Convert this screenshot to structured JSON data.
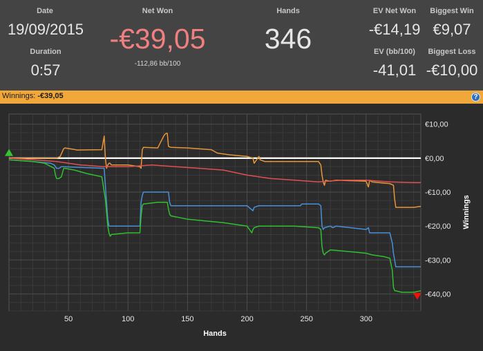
{
  "stats": {
    "date": {
      "label": "Date",
      "value": "19/09/2015"
    },
    "duration": {
      "label": "Duration",
      "value": "0:57"
    },
    "net_won": {
      "label": "Net Won",
      "value": "-€39,05",
      "sub": "-112,86 bb/100"
    },
    "hands": {
      "label": "Hands",
      "value": "346"
    },
    "ev_net_won": {
      "label": "EV Net Won",
      "value": "-€14,19"
    },
    "ev_bb100": {
      "label": "EV (bb/100)",
      "value": "-41,01"
    },
    "biggest_win": {
      "label": "Biggest Win",
      "value": "€9,07"
    },
    "biggest_loss": {
      "label": "Biggest Loss",
      "value": "-€10,00"
    }
  },
  "winnings_bar": {
    "label": "Winnings:",
    "value": "-€39,05"
  },
  "icons": {
    "help": "help-icon"
  },
  "colors": {
    "net_won_value": "#f08080",
    "header_bg": "#444444",
    "bar_bg": "#f0a83a",
    "plot_bg": "#2b2b2b",
    "grid": "#4a4a4a",
    "zero_line": "#ffffff"
  },
  "chart_data": {
    "type": "line",
    "xlabel": "Hands",
    "ylabel": "Winnings",
    "xlim": [
      0,
      346
    ],
    "ylim": [
      -45,
      13
    ],
    "x_ticks": [
      50,
      100,
      150,
      200,
      250,
      300
    ],
    "y_ticks": [
      10,
      0,
      -10,
      -20,
      -30,
      -40
    ],
    "y_tick_labels": [
      "€10,00",
      "€0,00",
      "-€10,00",
      "-€20,00",
      "-€30,00",
      "-€40,00"
    ],
    "grid": true,
    "series": [
      {
        "color": "#e8963a",
        "x": [
          0,
          40,
          43,
          46,
          47,
          56,
          57,
          78,
          80,
          81,
          82,
          83,
          84,
          85,
          86,
          100,
          110,
          111,
          112,
          113,
          125,
          130,
          131,
          132,
          133,
          134,
          135,
          136,
          150,
          170,
          175,
          185,
          200,
          205,
          206,
          207,
          208,
          209,
          210,
          211,
          215,
          235,
          240,
          260,
          262,
          263,
          264,
          265,
          266,
          270,
          275,
          300,
          302,
          303,
          305,
          320,
          323,
          324,
          325,
          340,
          346
        ],
        "y": [
          0,
          0,
          0.5,
          2.8,
          3,
          2.5,
          2.4,
          2.5,
          6.5,
          0,
          -3,
          -2,
          -1.5,
          -1.5,
          -2,
          -2,
          -2.5,
          -3,
          2.5,
          3.2,
          3,
          6.5,
          7,
          7.3,
          7.3,
          3.5,
          3.3,
          3.2,
          3,
          2.5,
          1.5,
          1,
          0.5,
          0,
          -1.5,
          -1,
          -0.5,
          0,
          0.5,
          -0.5,
          -1,
          -1,
          -1,
          -1,
          -2,
          -5,
          -7,
          -8,
          -6.5,
          -6.8,
          -6.5,
          -6.8,
          -8.5,
          -6.5,
          -7,
          -7.5,
          -8,
          -12,
          -14.5,
          -14.5,
          -14.19
        ]
      },
      {
        "color": "#e05050",
        "x": [
          0,
          20,
          40,
          50,
          60,
          80,
          100,
          120,
          140,
          160,
          180,
          200,
          220,
          240,
          260,
          280,
          300,
          320,
          340,
          346
        ],
        "y": [
          0,
          -0.5,
          -1,
          -1.5,
          -2,
          -2.5,
          -2.5,
          -2,
          -2.5,
          -3,
          -3.5,
          -5,
          -6,
          -6.5,
          -7,
          -6.5,
          -6.5,
          -7,
          -7.2,
          -7.2
        ]
      },
      {
        "color": "#4a90d9",
        "x": [
          0,
          20,
          35,
          38,
          39,
          40,
          42,
          43,
          44,
          45,
          80,
          81,
          82,
          83,
          84,
          110,
          111,
          112,
          113,
          134,
          135,
          136,
          150,
          200,
          205,
          206,
          210,
          245,
          246,
          260,
          262,
          263,
          264,
          265,
          270,
          272,
          275,
          300,
          302,
          303,
          304,
          320,
          322,
          323,
          324,
          325,
          340,
          346
        ],
        "y": [
          -0.5,
          -1,
          -1.5,
          -2,
          -2.5,
          -3,
          -3,
          -2.8,
          -2.5,
          -2.5,
          -3,
          -8,
          -13,
          -18,
          -20,
          -20,
          -13,
          -11,
          -10,
          -10,
          -13,
          -14,
          -14,
          -14,
          -15.5,
          -14.5,
          -14,
          -14,
          -13.5,
          -13.5,
          -14,
          -20,
          -21,
          -20.5,
          -20,
          -20.5,
          -20,
          -21,
          -20.5,
          -22,
          -22,
          -22,
          -25,
          -28,
          -30,
          -32,
          -32,
          -32
        ]
      },
      {
        "color": "#30c030",
        "x": [
          0,
          20,
          30,
          38,
          39,
          40,
          42,
          44,
          46,
          47,
          55,
          65,
          78,
          80,
          81,
          82,
          83,
          84,
          85,
          86,
          100,
          110,
          111,
          112,
          113,
          125,
          133,
          134,
          135,
          136,
          150,
          180,
          200,
          203,
          204,
          205,
          206,
          210,
          240,
          260,
          262,
          263,
          264,
          265,
          266,
          270,
          300,
          305,
          315,
          320,
          322,
          323,
          324,
          330,
          340,
          346
        ],
        "y": [
          -0.5,
          -1,
          -1.5,
          -3,
          -5,
          -6,
          -6,
          -5.5,
          -3,
          -3,
          -3.5,
          -4.5,
          -5.5,
          -10,
          -12,
          -16,
          -20,
          -22,
          -23,
          -22.5,
          -22,
          -22,
          -17,
          -14,
          -13.5,
          -13,
          -13,
          -15,
          -16.5,
          -17,
          -18,
          -19,
          -20,
          -21.5,
          -22,
          -21,
          -20.5,
          -20,
          -20,
          -20.5,
          -21,
          -26,
          -28,
          -28.5,
          -28,
          -27,
          -28,
          -28.5,
          -29,
          -29.5,
          -33,
          -38,
          -39,
          -39.5,
          -39.5,
          -39.05
        ]
      }
    ],
    "markers": [
      {
        "shape": "triangle-up",
        "color": "#33c433",
        "x": 0,
        "y": 1.5
      },
      {
        "shape": "triangle-down",
        "color": "#ee1111",
        "x": 343,
        "y": -40.5
      }
    ]
  }
}
